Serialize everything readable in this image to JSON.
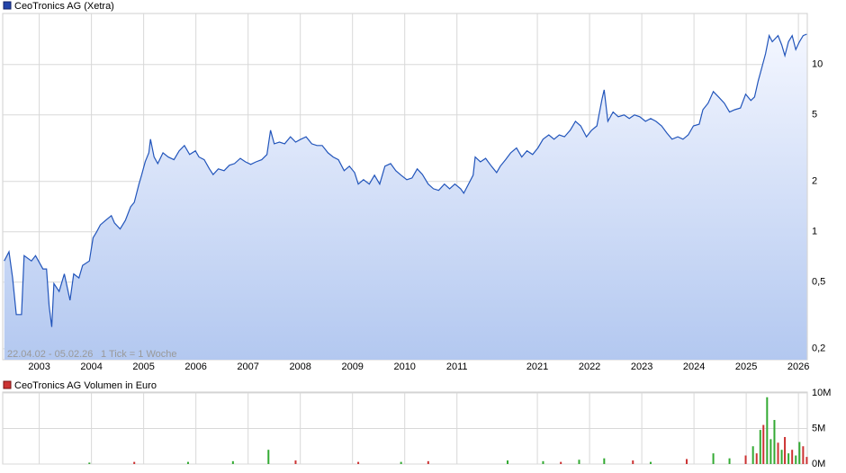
{
  "chart_data": [
    {
      "type": "line",
      "range_label": "22.04.02 - 05.02.26",
      "tick_label": "1 Tick = 1 Woche",
      "log_y": true,
      "grid": true,
      "x_break": [
        2011.28,
        2019.74
      ],
      "xlim": [
        2002.3,
        2026.17
      ],
      "xticks": [
        2003,
        2004,
        2005,
        2006,
        2007,
        2008,
        2009,
        2010,
        2011,
        2021,
        2022,
        2023,
        2024,
        2025,
        2026
      ],
      "ylim": [
        0.172,
        20.2
      ],
      "yticks": [
        10,
        5,
        2,
        1,
        {
          "value": 0.5,
          "label": "0,5"
        },
        {
          "value": 0.2,
          "label": "0,2"
        }
      ],
      "x": [
        2002.33,
        2002.42,
        2002.49,
        2002.56,
        2002.66,
        2002.71,
        2002.85,
        2002.93,
        2003.07,
        2003.14,
        2003.19,
        2003.24,
        2003.28,
        2003.38,
        2003.48,
        2003.59,
        2003.66,
        2003.76,
        2003.83,
        2003.96,
        2004.03,
        2004.1,
        2004.17,
        2004.27,
        2004.38,
        2004.44,
        2004.55,
        2004.65,
        2004.75,
        2004.82,
        2004.91,
        2004.96,
        2005.03,
        2005.1,
        2005.13,
        2005.2,
        2005.27,
        2005.37,
        2005.47,
        2005.58,
        2005.68,
        2005.78,
        2005.88,
        2005.99,
        2006.06,
        2006.16,
        2006.26,
        2006.33,
        2006.43,
        2006.54,
        2006.64,
        2006.74,
        2006.85,
        2006.95,
        2007.05,
        2007.15,
        2007.26,
        2007.36,
        2007.43,
        2007.5,
        2007.6,
        2007.7,
        2007.81,
        2007.91,
        2008.01,
        2008.11,
        2008.22,
        2008.32,
        2008.42,
        2008.53,
        2008.63,
        2008.73,
        2008.84,
        2008.94,
        2009.04,
        2009.11,
        2009.21,
        2009.32,
        2009.42,
        2009.52,
        2009.62,
        2009.73,
        2009.83,
        2009.93,
        2010.04,
        2010.14,
        2010.24,
        2010.34,
        2010.45,
        2010.55,
        2010.65,
        2010.76,
        2010.86,
        2010.96,
        2011.07,
        2011.13,
        2019.77,
        2019.81,
        2019.91,
        2020.01,
        2020.12,
        2020.22,
        2020.29,
        2020.39,
        2020.49,
        2020.6,
        2020.7,
        2020.8,
        2020.91,
        2021.01,
        2021.11,
        2021.22,
        2021.32,
        2021.42,
        2021.52,
        2021.63,
        2021.73,
        2021.83,
        2021.94,
        2022.04,
        2022.14,
        2022.24,
        2022.28,
        2022.35,
        2022.45,
        2022.55,
        2022.66,
        2022.76,
        2022.86,
        2022.96,
        2023.07,
        2023.17,
        2023.27,
        2023.38,
        2023.48,
        2023.58,
        2023.69,
        2023.79,
        2023.89,
        2023.99,
        2024.1,
        2024.17,
        2024.27,
        2024.37,
        2024.47,
        2024.58,
        2024.68,
        2024.78,
        2024.89,
        2024.99,
        2025.09,
        2025.16,
        2025.23,
        2025.3,
        2025.37,
        2025.44,
        2025.5,
        2025.61,
        2025.68,
        2025.74,
        2025.81,
        2025.88,
        2025.95,
        2026.02,
        2026.09,
        2026.16
      ],
      "series": [
        {
          "name": "CeoTronics AG (Xetra)",
          "color": "#2255bb",
          "values": [
            0.67,
            0.76,
            0.53,
            0.32,
            0.32,
            0.72,
            0.67,
            0.72,
            0.6,
            0.6,
            0.36,
            0.27,
            0.49,
            0.44,
            0.56,
            0.39,
            0.56,
            0.53,
            0.63,
            0.67,
            0.92,
            1.0,
            1.1,
            1.17,
            1.25,
            1.13,
            1.04,
            1.17,
            1.41,
            1.5,
            1.93,
            2.18,
            2.63,
            2.97,
            3.58,
            2.8,
            2.56,
            2.97,
            2.8,
            2.7,
            3.05,
            3.28,
            2.9,
            3.05,
            2.8,
            2.7,
            2.38,
            2.2,
            2.38,
            2.32,
            2.5,
            2.56,
            2.75,
            2.62,
            2.53,
            2.62,
            2.7,
            2.9,
            4.05,
            3.36,
            3.44,
            3.36,
            3.7,
            3.44,
            3.58,
            3.7,
            3.36,
            3.28,
            3.28,
            2.97,
            2.8,
            2.7,
            2.32,
            2.47,
            2.26,
            1.93,
            2.05,
            1.93,
            2.18,
            1.93,
            2.47,
            2.56,
            2.32,
            2.18,
            2.05,
            2.1,
            2.38,
            2.2,
            1.93,
            1.81,
            1.77,
            1.93,
            1.81,
            1.93,
            1.81,
            1.7,
            2.18,
            2.8,
            2.62,
            2.75,
            2.47,
            2.26,
            2.47,
            2.7,
            2.97,
            3.17,
            2.8,
            3.05,
            2.9,
            3.17,
            3.58,
            3.8,
            3.58,
            3.8,
            3.7,
            4.05,
            4.58,
            4.3,
            3.7,
            4.05,
            4.3,
            6.25,
            7.06,
            4.58,
            5.2,
            4.88,
            5.0,
            4.76,
            5.0,
            4.88,
            4.58,
            4.76,
            4.58,
            4.3,
            3.9,
            3.58,
            3.7,
            3.58,
            3.8,
            4.3,
            4.4,
            5.37,
            5.88,
            6.9,
            6.4,
            5.88,
            5.2,
            5.37,
            5.5,
            6.65,
            6.1,
            6.4,
            8.0,
            9.6,
            11.6,
            14.9,
            13.7,
            14.9,
            13.1,
            11.3,
            13.7,
            14.9,
            12.3,
            13.7,
            14.9,
            15.2
          ]
        }
      ]
    },
    {
      "type": "bar",
      "grid": true,
      "x_break": [
        2011.28,
        2019.74
      ],
      "xlim": [
        2002.3,
        2026.17
      ],
      "xticks": [
        2003,
        2004,
        2005,
        2006,
        2007,
        2008,
        2009,
        2010,
        2011,
        2021,
        2022,
        2023,
        2024,
        2025,
        2026
      ],
      "ylim": [
        0,
        10000000
      ],
      "yticks": [
        {
          "value": 10000000,
          "label": "10M"
        },
        {
          "value": 5000000,
          "label": "5M"
        },
        {
          "value": 0,
          "label": "0M"
        }
      ],
      "x": [
        2003.96,
        2004.82,
        2005.85,
        2006.71,
        2007.39,
        2007.91,
        2009.11,
        2009.93,
        2010.45,
        2020.43,
        2021.11,
        2021.45,
        2021.8,
        2022.28,
        2022.83,
        2023.17,
        2023.86,
        2024.37,
        2024.68,
        2024.99,
        2025.13,
        2025.2,
        2025.27,
        2025.33,
        2025.4,
        2025.47,
        2025.54,
        2025.61,
        2025.68,
        2025.74,
        2025.81,
        2025.88,
        2025.95,
        2026.02,
        2026.09,
        2026.16
      ],
      "series": [
        {
          "name": "CeoTronics AG Volumen in Euro",
          "color": "#cc3333",
          "colors": [
            "#33aa33",
            "#cc3333",
            "#33aa33",
            "#33aa33",
            "#33aa33",
            "#cc3333",
            "#cc3333",
            "#33aa33",
            "#cc3333",
            "#33aa33",
            "#33aa33",
            "#cc3333",
            "#33aa33",
            "#33aa33",
            "#cc3333",
            "#33aa33",
            "#cc3333",
            "#33aa33",
            "#33aa33",
            "#cc3333",
            "#33aa33",
            "#cc3333",
            "#33aa33",
            "#cc3333",
            "#33aa33",
            "#33aa33",
            "#33aa33",
            "#cc3333",
            "#33aa33",
            "#cc3333",
            "#33aa33",
            "#cc3333",
            "#33aa33",
            "#33aa33",
            "#cc3333",
            "#cc3333"
          ],
          "values": [
            200000,
            300000,
            300000,
            400000,
            2000000,
            500000,
            300000,
            300000,
            400000,
            500000,
            400000,
            300000,
            600000,
            800000,
            500000,
            300000,
            700000,
            1500000,
            800000,
            1200000,
            2500000,
            1500000,
            4800000,
            5500000,
            9400000,
            3500000,
            6200000,
            3000000,
            2000000,
            3800000,
            1500000,
            2000000,
            1200000,
            3100000,
            2500000,
            1000000
          ]
        }
      ]
    }
  ]
}
